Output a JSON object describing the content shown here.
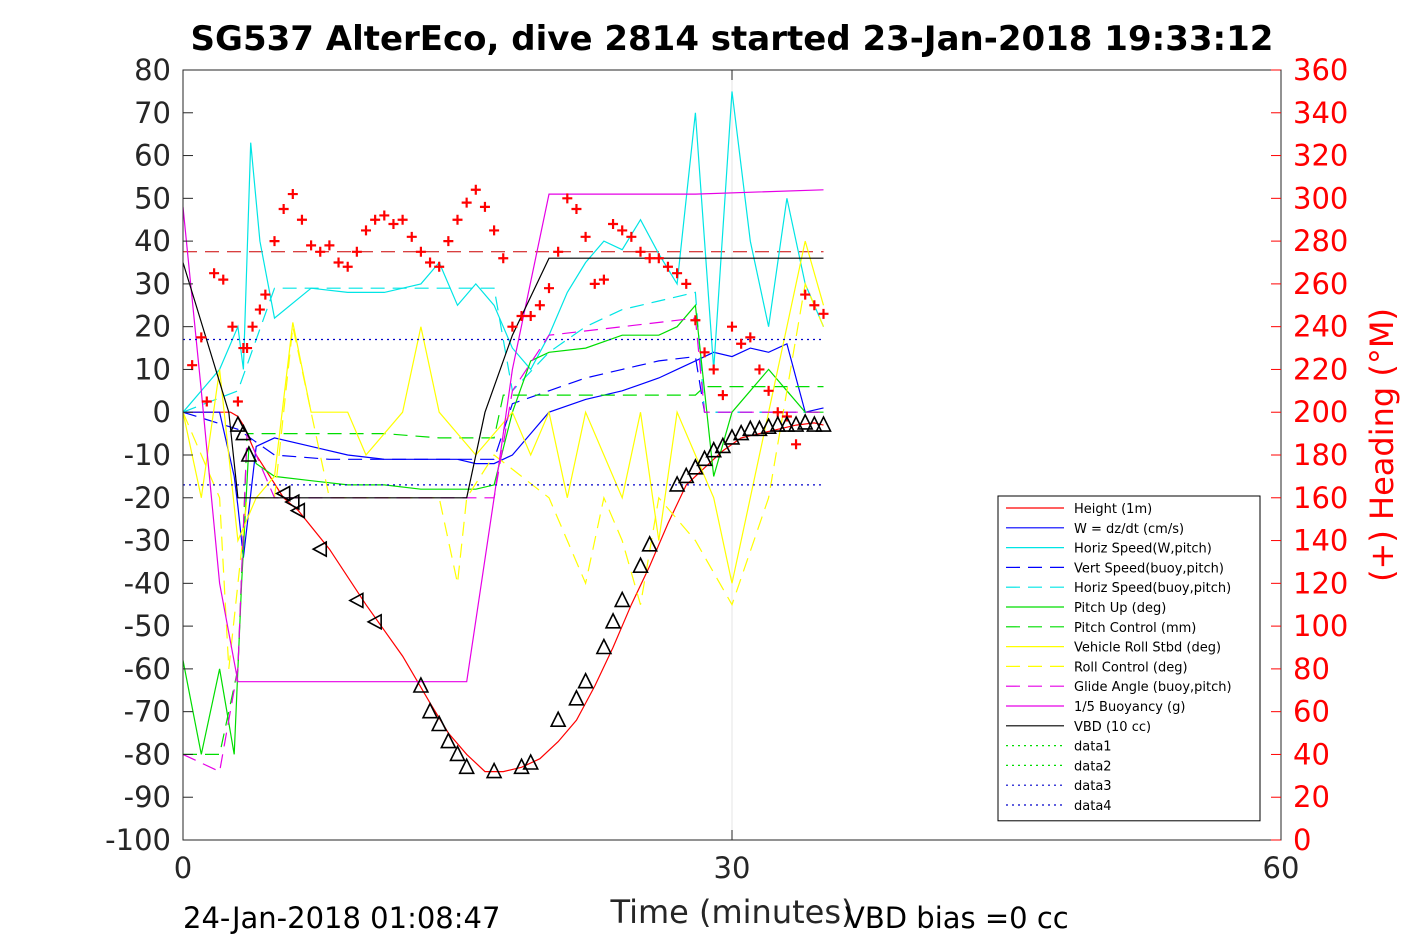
{
  "title": "SG537 AlterEco, dive 2814 started 23-Jan-2018 19:33:12",
  "footer": {
    "left": "24-Jan-2018 01:08:47",
    "right": "VBD bias =0 cc"
  },
  "chart_data": {
    "type": "line",
    "title": "SG537 AlterEco, dive 2814 started 23-Jan-2018 19:33:12",
    "xlabel": "Time (minutes)",
    "ylabel": "",
    "y2label": "(+) Heading (°M)",
    "xlim": [
      0,
      60
    ],
    "ylim": [
      -100,
      80
    ],
    "y2lim": [
      0,
      360
    ],
    "xticks": [
      "0",
      "30",
      "60"
    ],
    "yticks": [
      "80",
      "70",
      "60",
      "50",
      "40",
      "30",
      "20",
      "10",
      "0",
      "-10",
      "-20",
      "-30",
      "-40",
      "-50",
      "-60",
      "-70",
      "-80",
      "-90",
      "-100"
    ],
    "y2ticks": [
      "360",
      "340",
      "320",
      "300",
      "280",
      "260",
      "240",
      "220",
      "200",
      "180",
      "160",
      "140",
      "120",
      "100",
      "80",
      "60",
      "40",
      "20",
      "0"
    ],
    "grid": "x-only",
    "legend_position": "bottom-right",
    "colors": {
      "right_axis": "#ff0000"
    },
    "series": [
      {
        "name": "Height (1m)",
        "color": "#ff0000",
        "style": "solid",
        "x": [
          0,
          1,
          2.6,
          3,
          3.3,
          4,
          5.5,
          6.3,
          8,
          10,
          12,
          13.5,
          14.5,
          15.5,
          16.5,
          17.5,
          18.5,
          19.5,
          20.5,
          21.5,
          22.5,
          23.5,
          24.5,
          25.5,
          26.5,
          27.5,
          28.5,
          29.5,
          30.5,
          31.5,
          32.5,
          33.5,
          34.5,
          35
        ],
        "y": [
          0,
          0,
          0,
          -1,
          -3,
          -10,
          -20,
          -23,
          -32,
          -45,
          -57,
          -68,
          -75,
          -80,
          -84,
          -84,
          -83,
          -81,
          -77,
          -72,
          -64,
          -55,
          -45,
          -36,
          -26,
          -17,
          -13,
          -9,
          -6,
          -5,
          -4,
          -3,
          -2.5,
          -3
        ]
      },
      {
        "name": "W = dz/dt (cm/s)",
        "color": "#0000ff",
        "style": "solid",
        "x": [
          0,
          2,
          2.8,
          3,
          3.3,
          4,
          5,
          7,
          9,
          11,
          13,
          15,
          16,
          17,
          18,
          19,
          20,
          22,
          24,
          26,
          27,
          28,
          29,
          30,
          31,
          32,
          33,
          34,
          35
        ],
        "y": [
          0,
          0,
          -15,
          -22,
          -34,
          -8,
          -6,
          -8,
          -10,
          -11,
          -11,
          -11,
          -12,
          -12,
          -10,
          -5,
          0,
          3,
          5,
          8,
          10,
          12,
          14,
          13,
          15,
          14,
          16,
          0,
          1
        ]
      },
      {
        "name": "Horiz Speed(W,pitch)",
        "color": "#00e5e5",
        "style": "solid",
        "x": [
          0,
          2,
          3,
          3.3,
          3.7,
          4.2,
          5,
          7,
          9,
          11,
          13,
          14,
          15,
          16,
          17,
          18,
          19,
          20,
          21,
          22,
          23,
          24,
          25,
          26,
          27,
          28,
          29,
          30,
          31,
          32,
          33,
          34,
          35
        ],
        "y": [
          0,
          10,
          20,
          10,
          63,
          40,
          22,
          29,
          28,
          28,
          30,
          35,
          25,
          30,
          25,
          15,
          10,
          18,
          28,
          35,
          40,
          38,
          45,
          37,
          30,
          70,
          10,
          75,
          40,
          20,
          50,
          30,
          20
        ]
      },
      {
        "name": "Vert Speed(buoy,pitch)",
        "color": "#0000ff",
        "style": "dashed",
        "x": [
          0,
          3,
          5,
          8,
          11,
          14,
          17,
          18,
          20,
          22,
          24,
          26,
          28,
          28.5,
          30,
          32,
          34,
          35
        ],
        "y": [
          0,
          -4,
          -10,
          -11,
          -11,
          -11,
          -11,
          2,
          5,
          8,
          10,
          12,
          13,
          0,
          0,
          0,
          0,
          0
        ]
      },
      {
        "name": "Horiz Speed(buoy,pitch)",
        "color": "#00e5e5",
        "style": "dashed",
        "x": [
          0,
          3,
          5,
          8,
          11,
          14,
          17,
          18,
          20,
          22,
          24,
          26,
          28,
          28.5,
          30,
          32,
          34,
          35
        ],
        "y": [
          0,
          5,
          29,
          29,
          29,
          29,
          29,
          5,
          14,
          20,
          24,
          26,
          28,
          0,
          0,
          0,
          0,
          0
        ]
      },
      {
        "name": "Pitch Up (deg)",
        "color": "#00dd00",
        "style": "solid",
        "x": [
          0,
          1,
          2,
          2.8,
          3.2,
          3.6,
          4,
          5,
          7,
          9,
          11,
          13,
          15,
          16,
          17,
          18,
          19,
          20,
          22,
          24,
          26,
          27,
          28,
          29,
          30,
          31,
          32,
          33,
          34,
          35
        ],
        "y": [
          -58,
          -80,
          -60,
          -80,
          -40,
          -8,
          -12,
          -15,
          -16,
          -17,
          -17,
          -18,
          -18,
          -18,
          -17,
          0,
          12,
          14,
          15,
          18,
          18,
          20,
          25,
          -15,
          0,
          5,
          10,
          5,
          0,
          0
        ]
      },
      {
        "name": "Pitch Control (mm)",
        "color": "#00dd00",
        "style": "dashed",
        "x": [
          0,
          2,
          3,
          3.5,
          5,
          8,
          11,
          14,
          17,
          17.5,
          20,
          24,
          28,
          28.5,
          35
        ],
        "y": [
          -80,
          -80,
          -60,
          -5,
          -5,
          -5,
          -5,
          -6,
          -6,
          4,
          4,
          4,
          4,
          6,
          6
        ]
      },
      {
        "name": "Vehicle Roll Stbd (deg)",
        "color": "#ffff00",
        "style": "solid",
        "x": [
          0,
          1,
          2,
          3,
          4,
          5,
          6,
          7,
          8,
          9,
          10,
          11,
          12,
          13,
          14,
          15,
          16,
          17,
          18,
          19,
          20,
          21,
          22,
          23,
          24,
          25,
          26,
          27,
          28,
          29,
          30,
          31,
          32,
          33,
          34,
          35
        ],
        "y": [
          0,
          -20,
          10,
          -30,
          -20,
          -15,
          21,
          0,
          0,
          0,
          -10,
          -5,
          0,
          20,
          0,
          -5,
          -10,
          -5,
          0,
          -10,
          0,
          -20,
          0,
          -10,
          -20,
          0,
          -30,
          0,
          -10,
          -20,
          -40,
          -20,
          0,
          20,
          40,
          25
        ]
      },
      {
        "name": "Roll Control (deg)",
        "color": "#ffff00",
        "style": "dashed",
        "x": [
          0,
          2,
          2.5,
          3.5,
          5,
          6,
          8,
          11,
          14,
          15,
          15.5,
          17,
          20,
          22,
          23,
          24,
          25,
          26,
          28,
          30,
          32,
          34,
          35
        ],
        "y": [
          0,
          -20,
          -60,
          -20,
          -20,
          20,
          -20,
          -20,
          -20,
          -40,
          -20,
          -10,
          -20,
          -40,
          -20,
          -30,
          -45,
          -20,
          -30,
          -45,
          -20,
          30,
          20
        ]
      },
      {
        "name": "Glide Angle (buoy,pitch)",
        "color": "#e600e6",
        "style": "dashed",
        "x": [
          0,
          2,
          3,
          3.5,
          5,
          8,
          11,
          14,
          17,
          18,
          20,
          24,
          28,
          28.5,
          35
        ],
        "y": [
          -80,
          -84,
          -60,
          -5,
          -20,
          -20,
          -20,
          -20,
          -20,
          5,
          18,
          20,
          22,
          0,
          0
        ]
      },
      {
        "name": "1/5 Buoyancy (g)",
        "color": "#e600e6",
        "style": "solid",
        "x": [
          0,
          1,
          2,
          3,
          4,
          8,
          12,
          15.5,
          17,
          18,
          20,
          28,
          35
        ],
        "y": [
          48,
          5,
          -40,
          -63,
          -63,
          -63,
          -63,
          -63,
          -20,
          10,
          51,
          51,
          52
        ]
      },
      {
        "name": "VBD (10 cc)",
        "color": "#000000",
        "style": "solid",
        "x": [
          0,
          2.5,
          3,
          15.5,
          16.5,
          18,
          20,
          28,
          35
        ],
        "y": [
          35,
          0,
          -20,
          -20,
          0,
          18,
          36,
          36,
          36
        ]
      },
      {
        "name": "data1",
        "color": "#00dd00",
        "style": "dotted",
        "x": [],
        "y": []
      },
      {
        "name": "data2",
        "color": "#00dd00",
        "style": "dotted",
        "x": [],
        "y": []
      },
      {
        "name": "data3",
        "color": "#0000cc",
        "style": "dotted",
        "x": [
          0,
          35
        ],
        "y": [
          17,
          17
        ]
      },
      {
        "name": "data4",
        "color": "#0000cc",
        "style": "dotted",
        "x": [
          0,
          35
        ],
        "y": [
          -17,
          -17
        ]
      }
    ],
    "heading_target": {
      "color": "#cc0000",
      "style": "dashed",
      "y2": 275
    },
    "heading_markers": {
      "color": "#ff0000",
      "marker": "+",
      "x": [
        0.5,
        1,
        1.3,
        1.7,
        2.2,
        2.7,
        3,
        3.3,
        3.5,
        3.8,
        4.2,
        4.5,
        5,
        5.5,
        6,
        6.5,
        7,
        7.5,
        8,
        8.5,
        9,
        9.5,
        10,
        10.5,
        11,
        11.5,
        12,
        12.5,
        13,
        13.5,
        14,
        14.5,
        15,
        15.5,
        16,
        16.5,
        17,
        17.5,
        18,
        18.5,
        19,
        19.5,
        20,
        20.5,
        21,
        21.5,
        22,
        22.5,
        23,
        23.5,
        24,
        24.5,
        25,
        25.5,
        26,
        26.5,
        27,
        27.5,
        28,
        28.5,
        29,
        29.5,
        30,
        30.5,
        31,
        31.5,
        32,
        32.5,
        33,
        33.5,
        34,
        34.5,
        35
      ],
      "y2": [
        222,
        235,
        205,
        265,
        262,
        240,
        205,
        230,
        230,
        240,
        248,
        255,
        280,
        295,
        302,
        290,
        278,
        275,
        278,
        270,
        268,
        275,
        285,
        290,
        292,
        288,
        290,
        282,
        275,
        270,
        268,
        280,
        290,
        298,
        304,
        296,
        285,
        272,
        240,
        245,
        245,
        250,
        258,
        275,
        300,
        295,
        282,
        260,
        262,
        288,
        285,
        282,
        275,
        272,
        272,
        268,
        265,
        260,
        243,
        228,
        220,
        208,
        240,
        232,
        235,
        220,
        210,
        200,
        198,
        185,
        255,
        250,
        246
      ]
    },
    "profile_markers": {
      "color": "#000000",
      "marker": "triangle",
      "x": [
        3,
        3.3,
        3.6,
        5.5,
        6,
        6.3,
        7.5,
        9.5,
        10.5,
        13,
        13.5,
        14,
        14.5,
        15,
        15.5,
        17,
        18.5,
        19,
        20.5,
        21.5,
        22,
        23,
        23.5,
        24,
        25,
        25.5,
        27,
        27.5,
        28,
        28.5,
        29,
        29.5,
        30,
        30.5,
        31,
        31.5,
        32,
        32.5,
        33,
        33.5,
        34,
        34.5,
        35
      ],
      "y": [
        -3,
        -5,
        -10,
        -19,
        -21,
        -23,
        -32,
        -44,
        -49,
        -64,
        -70,
        -73,
        -77,
        -80,
        -83,
        -84,
        -83,
        -82,
        -72,
        -67,
        -63,
        -55,
        -49,
        -44,
        -36,
        -31,
        -17,
        -15,
        -13,
        -11,
        -9,
        -8,
        -6,
        -5,
        -4,
        -4,
        -3.5,
        -3,
        -3,
        -3,
        -2.5,
        -3,
        -3
      ]
    }
  }
}
